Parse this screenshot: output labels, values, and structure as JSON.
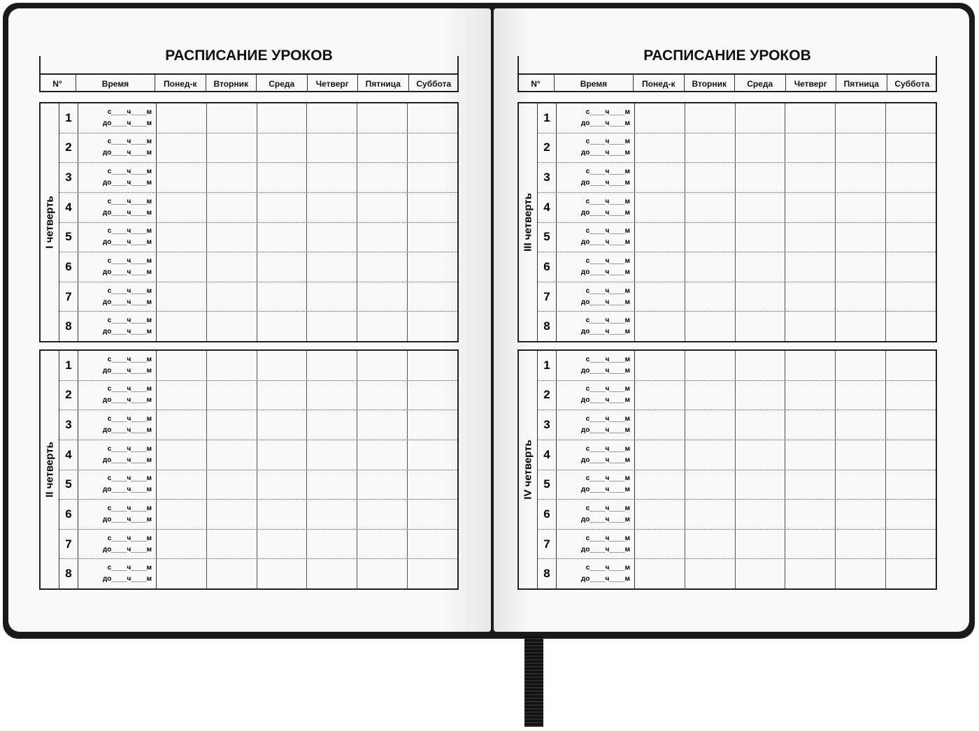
{
  "title": "РАСПИСАНИЕ УРОКОВ",
  "headers": {
    "num": "N°",
    "time": "Время",
    "days": [
      "Понед-к",
      "Вторник",
      "Среда",
      "Четверг",
      "Пятница",
      "Суббота"
    ]
  },
  "time_template": {
    "from": "с____ч____м",
    "to": "до____ч____м"
  },
  "lesson_numbers": [
    "1",
    "2",
    "3",
    "4",
    "5",
    "6",
    "7",
    "8"
  ],
  "pages": [
    {
      "quarters": [
        "I четверть",
        "II четверть"
      ]
    },
    {
      "quarters": [
        "III четверть",
        "IV четверть"
      ]
    }
  ]
}
